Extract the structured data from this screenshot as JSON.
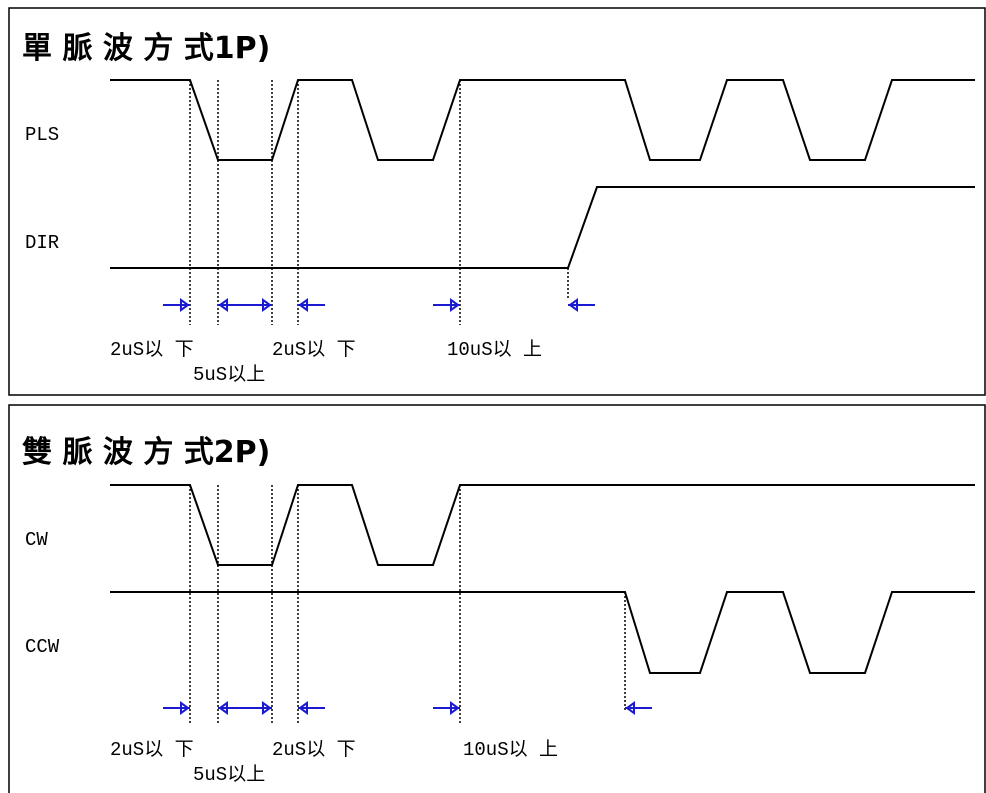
{
  "panels": [
    {
      "title": "單 脈 波 方 式1P)",
      "signals": [
        "PLS",
        "DIR"
      ],
      "timings": [
        "2uS以 下",
        "5uS以上",
        "2uS以 下",
        "10uS以 上"
      ]
    },
    {
      "title": "雙 脈 波 方 式2P)",
      "signals": [
        "CW",
        "CCW"
      ],
      "timings": [
        "2uS以 下",
        "5uS以上",
        "2uS以 下",
        "10uS以 上"
      ]
    }
  ]
}
